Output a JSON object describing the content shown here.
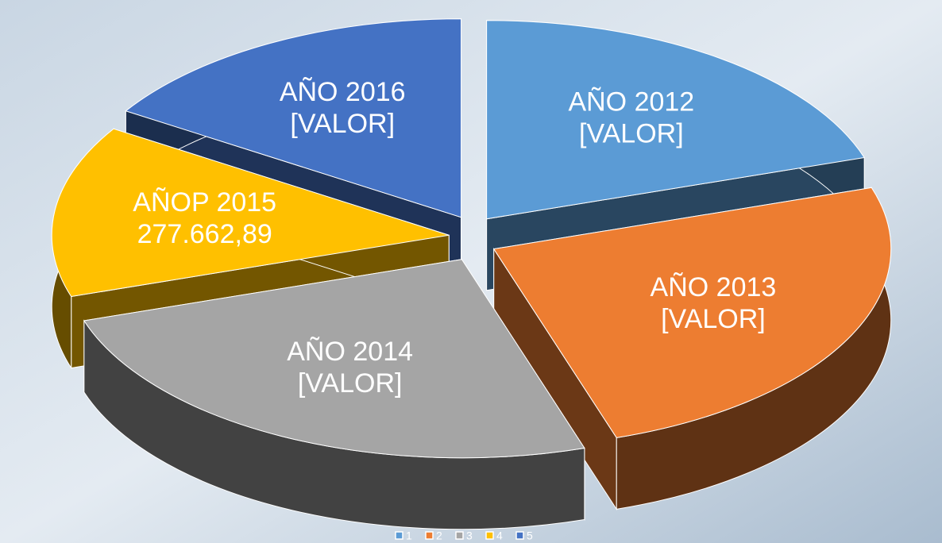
{
  "chart_data": {
    "type": "pie3d",
    "categories": [
      "1",
      "2",
      "3",
      "4",
      "5"
    ],
    "labels": [
      "AÑO 2012",
      "AÑO 2013",
      "AÑO 2014",
      "AÑOP 2015",
      "AÑO 2016"
    ],
    "values": [
      396661,
      495826,
      495826,
      277662.89,
      317329
    ],
    "value_labels": [
      "[VALOR]",
      "[VALOR]",
      "[VALOR]",
      "277.662,89",
      "[VALOR]"
    ],
    "colors": [
      "#5b9bd5",
      "#ed7d31",
      "#a5a5a5",
      "#ffc000",
      "#4472c4"
    ],
    "legend": "bottom"
  }
}
